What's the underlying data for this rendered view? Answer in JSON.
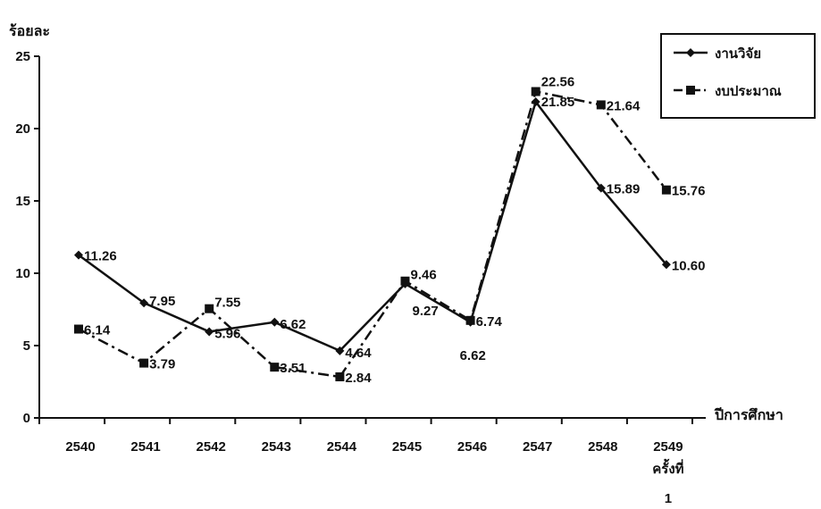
{
  "chart_data": {
    "type": "line",
    "ylabel": "ร้อยละ",
    "xlabel": "ปีการศึกษา",
    "ylim": [
      0,
      25
    ],
    "yticks": [
      0,
      5,
      10,
      15,
      20,
      25
    ],
    "categories": [
      "2540",
      "2541",
      "2542",
      "2543",
      "2544",
      "2545",
      "2546",
      "2547",
      "2548",
      "2549"
    ],
    "category_sublabels": [
      "",
      "",
      "",
      "",
      "",
      "",
      "",
      "",
      "",
      "ครั้งที่"
    ],
    "category_sublabels2": [
      "",
      "",
      "",
      "",
      "",
      "",
      "",
      "",
      "",
      "1"
    ],
    "grid": false,
    "legend_position": "top-right",
    "series": [
      {
        "name": "งานวิจัย",
        "marker": "diamond",
        "line_style": "solid",
        "values": [
          11.26,
          7.95,
          5.96,
          6.62,
          4.64,
          9.27,
          6.62,
          21.85,
          15.89,
          10.6
        ],
        "labels": [
          "11.26",
          "7.95",
          "5.96",
          "6.62",
          "4.64",
          "9.27",
          "6.62",
          "21.85",
          "15.89",
          "10.60"
        ]
      },
      {
        "name": "งบประมาณ",
        "marker": "square",
        "line_style": "dash-dot",
        "values": [
          6.14,
          3.79,
          7.55,
          3.51,
          2.84,
          9.46,
          6.74,
          22.56,
          21.64,
          15.76
        ],
        "labels": [
          "6.14",
          "3.79",
          "7.55",
          "3.51",
          "2.84",
          "9.46",
          "6.74",
          "22.56",
          "21.64",
          "15.76"
        ]
      }
    ]
  }
}
